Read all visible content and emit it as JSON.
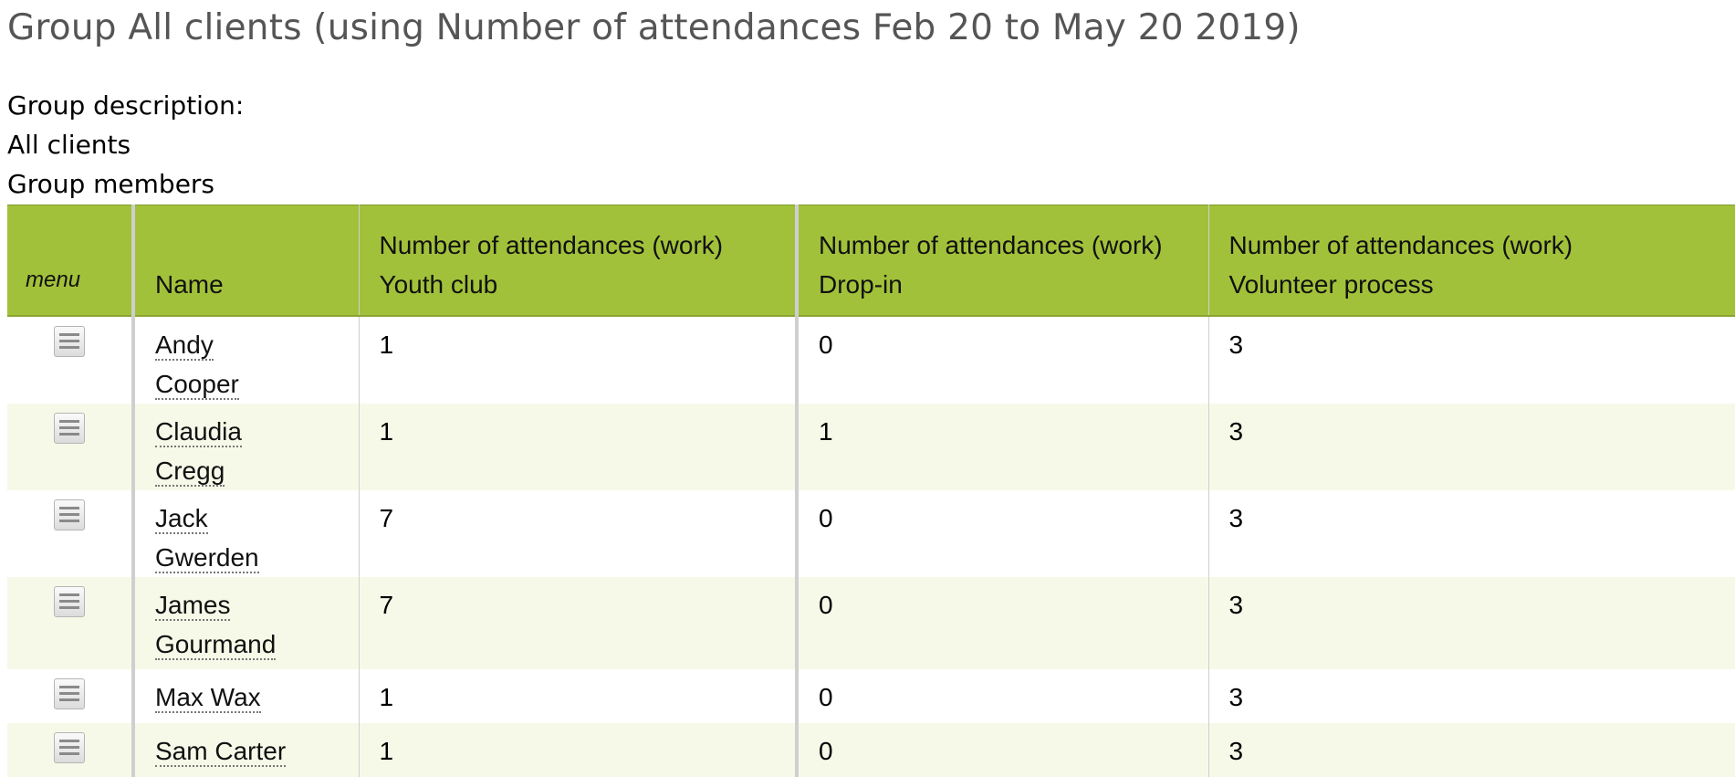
{
  "page": {
    "title": "Group All clients (using Number of attendances Feb 20 to May 20 2019)",
    "group_description_label": "Group description:",
    "group_description": "All clients",
    "members_label": "Group members"
  },
  "table": {
    "headers": {
      "menu": "menu",
      "name": "Name",
      "col1_line1": "Number of attendances (work)",
      "col1_line2": "Youth club",
      "col2_line1": "Number of attendances (work)",
      "col2_line2": "Drop-in",
      "col3_line1": "Number of attendances (work)",
      "col3_line2": "Volunteer process"
    },
    "rows": [
      {
        "name": "Andy Cooper",
        "youth_club": "1",
        "drop_in": "0",
        "volunteer": "3"
      },
      {
        "name": "Claudia Cregg",
        "youth_club": "1",
        "drop_in": "1",
        "volunteer": "3"
      },
      {
        "name": "Jack Gwerden",
        "youth_club": "7",
        "drop_in": "0",
        "volunteer": "3"
      },
      {
        "name": "James Gourmand",
        "youth_club": "7",
        "drop_in": "0",
        "volunteer": "3"
      },
      {
        "name": "Max Wax",
        "youth_club": "1",
        "drop_in": "0",
        "volunteer": "3"
      },
      {
        "name": "Sam Carter",
        "youth_club": "1",
        "drop_in": "0",
        "volunteer": "3"
      }
    ]
  },
  "icons": {
    "row_menu": "menu-icon"
  },
  "colors": {
    "header_bg": "#a2c13a",
    "row_alt_bg": "#f6f9e8",
    "title_color": "#555555"
  }
}
